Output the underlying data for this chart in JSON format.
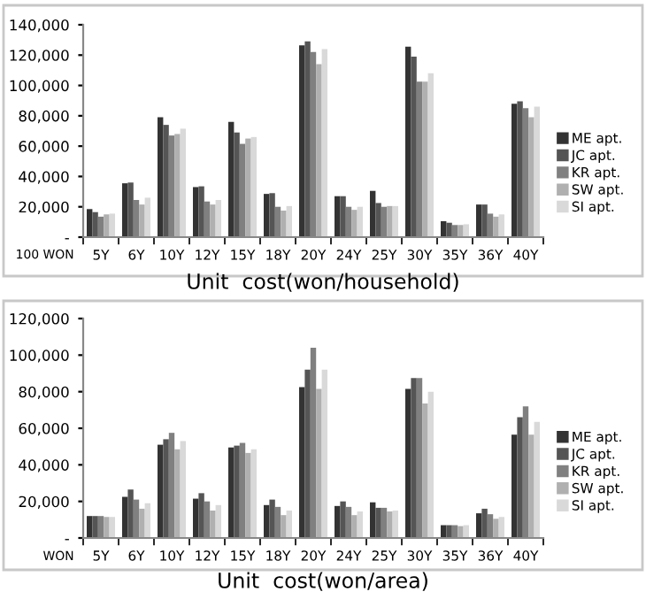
{
  "chart_data": [
    {
      "type": "bar",
      "xlabel": "Unit  cost(won/household)",
      "annotations": [
        "100 WON"
      ],
      "categories": [
        "5Y",
        "6Y",
        "10Y",
        "12Y",
        "15Y",
        "18Y",
        "20Y",
        "24Y",
        "25Y",
        "30Y",
        "35Y",
        "36Y",
        "40Y"
      ],
      "series": [
        {
          "name": "ME apt.",
          "color": "#333333",
          "values": [
            18500,
            35500,
            79000,
            33000,
            76000,
            28500,
            126500,
            27000,
            30500,
            125500,
            10500,
            21500,
            88000
          ]
        },
        {
          "name": "JC apt.",
          "color": "#555555",
          "values": [
            16500,
            36000,
            74000,
            33500,
            69000,
            29000,
            129000,
            27000,
            22500,
            119000,
            9500,
            21500,
            89500
          ]
        },
        {
          "name": "KR apt.",
          "color": "#808080",
          "values": [
            13500,
            24500,
            67000,
            23500,
            61500,
            20000,
            122000,
            20000,
            20000,
            102500,
            8000,
            15500,
            85000
          ]
        },
        {
          "name": "SW apt.",
          "color": "#b0b0b0",
          "values": [
            15000,
            21500,
            68000,
            21500,
            65000,
            17500,
            114000,
            18000,
            20500,
            102500,
            8000,
            13500,
            79000
          ]
        },
        {
          "name": "SI apt.",
          "color": "#d9d9d9",
          "values": [
            15500,
            26000,
            71500,
            24500,
            66000,
            20500,
            124000,
            20000,
            20500,
            108000,
            8500,
            15000,
            86000
          ]
        }
      ],
      "ylim": [
        0,
        140000
      ],
      "yticks": [
        {
          "value": 0,
          "label": "-"
        },
        {
          "value": 20000,
          "label": "20,000"
        },
        {
          "value": 40000,
          "label": "40,000"
        },
        {
          "value": 60000,
          "label": "60,000"
        },
        {
          "value": 80000,
          "label": "80,000"
        },
        {
          "value": 100000,
          "label": "100,000"
        },
        {
          "value": 120000,
          "label": "120,000"
        },
        {
          "value": 140000,
          "label": "140,000"
        }
      ],
      "legend": "right",
      "grid": false
    },
    {
      "type": "bar",
      "xlabel": "Unit  cost(won/area)",
      "annotations": [
        "WON"
      ],
      "categories": [
        "5Y",
        "6Y",
        "10Y",
        "12Y",
        "15Y",
        "18Y",
        "20Y",
        "24Y",
        "25Y",
        "30Y",
        "35Y",
        "36Y",
        "40Y"
      ],
      "series": [
        {
          "name": "ME apt.",
          "color": "#333333",
          "values": [
            12000,
            22500,
            51000,
            21500,
            49500,
            18000,
            82500,
            17500,
            19500,
            81500,
            7000,
            13500,
            56500
          ]
        },
        {
          "name": "JC apt.",
          "color": "#555555",
          "values": [
            12000,
            26500,
            54000,
            24500,
            50500,
            21000,
            92000,
            20000,
            16500,
            87500,
            7000,
            16000,
            66000
          ]
        },
        {
          "name": "KR apt.",
          "color": "#808080",
          "values": [
            12000,
            21000,
            57500,
            20000,
            52000,
            17000,
            104000,
            17000,
            16500,
            87500,
            7000,
            13000,
            72000
          ]
        },
        {
          "name": "SW apt.",
          "color": "#b0b0b0",
          "values": [
            11500,
            16000,
            48500,
            15000,
            46500,
            12500,
            81500,
            12500,
            14500,
            73500,
            6500,
            10500,
            56500
          ]
        },
        {
          "name": "SI apt.",
          "color": "#d9d9d9",
          "values": [
            11500,
            19000,
            53000,
            18000,
            48500,
            15000,
            92000,
            14500,
            15000,
            80000,
            7000,
            11500,
            63500
          ]
        }
      ],
      "ylim": [
        0,
        120000
      ],
      "yticks": [
        {
          "value": 0,
          "label": "-"
        },
        {
          "value": 20000,
          "label": "20,000"
        },
        {
          "value": 40000,
          "label": "40,000"
        },
        {
          "value": 60000,
          "label": "60,000"
        },
        {
          "value": 80000,
          "label": "80,000"
        },
        {
          "value": 100000,
          "label": "100,000"
        },
        {
          "value": 120000,
          "label": "120,000"
        }
      ],
      "legend": "right",
      "grid": false
    }
  ]
}
